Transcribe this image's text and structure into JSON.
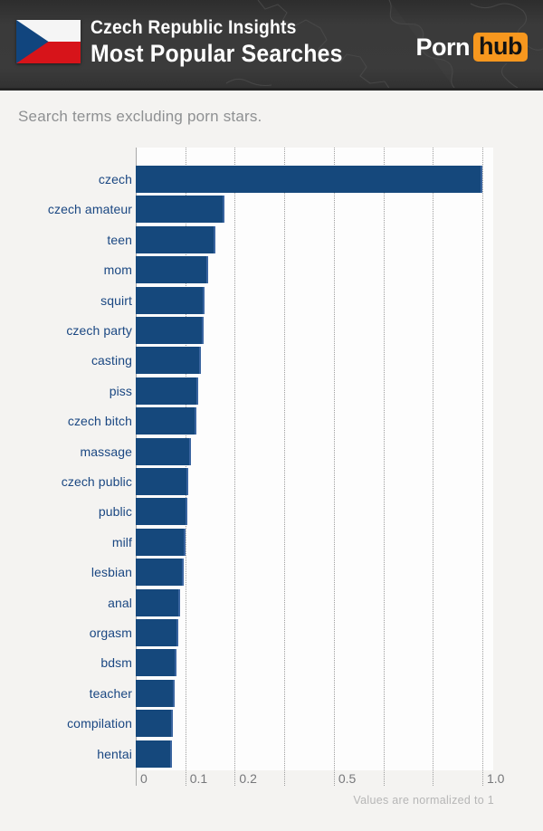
{
  "header": {
    "flag_icon": "czech-republic-flag",
    "flag_colors": {
      "white": "#f5f5f5",
      "red": "#d7141a",
      "blue": "#11457e"
    },
    "title_line1": "Czech Republic Insights",
    "title_line2": "Most Popular Searches",
    "logo_part1": "Porn",
    "logo_part2": "hub",
    "logo_accent_color": "#f7971e",
    "header_bg_color": "#383838"
  },
  "subtitle": "Search terms excluding porn stars.",
  "chart_data": {
    "type": "bar",
    "orientation": "horizontal",
    "title": "Most Popular Searches",
    "categories": [
      "czech",
      "czech amateur",
      "teen",
      "mom",
      "squirt",
      "czech party",
      "casting",
      "piss",
      "czech bitch",
      "massage",
      "czech public",
      "public",
      "milf",
      "lesbian",
      "anal",
      "orgasm",
      "bdsm",
      "teacher",
      "compilation",
      "hentai"
    ],
    "values": [
      1.0,
      0.18,
      0.16,
      0.146,
      0.139,
      0.137,
      0.132,
      0.126,
      0.122,
      0.112,
      0.106,
      0.104,
      0.101,
      0.097,
      0.09,
      0.086,
      0.082,
      0.079,
      0.075,
      0.073
    ],
    "xlim": [
      0,
      1.0
    ],
    "x_scale": "nonlinear-piecewise",
    "scale_anchors_value_to_gridline": [
      [
        0,
        0
      ],
      [
        0.1,
        1
      ],
      [
        0.2,
        2
      ],
      [
        0.5,
        4
      ],
      [
        1.0,
        7
      ]
    ],
    "x_ticks": [
      "0",
      "0.1",
      "0.2",
      "",
      "0.5",
      "",
      "",
      "1.0"
    ],
    "grid": "dotted-vertical",
    "legend": "none",
    "bar_color": "#15487c",
    "bar_edge_color": "#39649f",
    "category_label_color": "#1a4782",
    "tick_label_color": "#76777a",
    "footnote": "Values are normalized to 1"
  }
}
